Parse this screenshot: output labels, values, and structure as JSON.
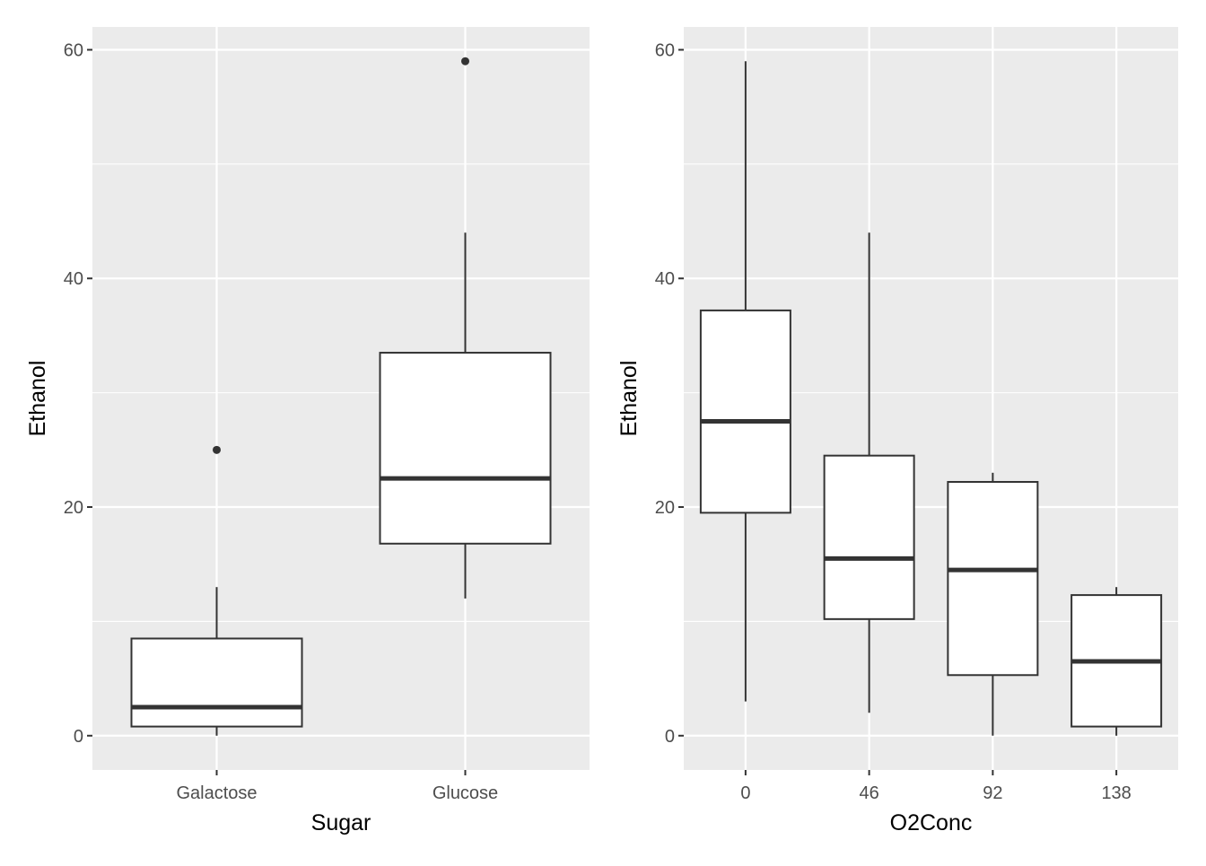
{
  "colors": {
    "panel_bg": "#ebebeb",
    "grid": "#ffffff",
    "box_fill": "#ffffff",
    "box_stroke": "#333333",
    "tick_text": "#4d4d4d",
    "axis_title": "#000000"
  },
  "chart_data": [
    {
      "type": "boxplot",
      "xlabel": "Sugar",
      "ylabel": "Ethanol",
      "ylim": [
        -3,
        62
      ],
      "yticks": [
        0,
        20,
        40,
        60
      ],
      "grid": true,
      "categories": [
        "Galactose",
        "Glucose"
      ],
      "boxes": [
        {
          "category": "Galactose",
          "whisker_low": 0,
          "q1": 0.8,
          "median": 2.5,
          "q3": 8.5,
          "whisker_high": 13,
          "outliers": [
            25
          ]
        },
        {
          "category": "Glucose",
          "whisker_low": 12,
          "q1": 16.8,
          "median": 22.5,
          "q3": 33.5,
          "whisker_high": 44,
          "outliers": [
            59
          ]
        }
      ]
    },
    {
      "type": "boxplot",
      "xlabel": "O2Conc",
      "ylabel": "Ethanol",
      "ylim": [
        -3,
        62
      ],
      "yticks": [
        0,
        20,
        40,
        60
      ],
      "grid": true,
      "categories": [
        "0",
        "46",
        "92",
        "138"
      ],
      "boxes": [
        {
          "category": "0",
          "whisker_low": 3,
          "q1": 19.5,
          "median": 27.5,
          "q3": 37.2,
          "whisker_high": 59,
          "outliers": []
        },
        {
          "category": "46",
          "whisker_low": 2,
          "q1": 10.2,
          "median": 15.5,
          "q3": 24.5,
          "whisker_high": 44,
          "outliers": []
        },
        {
          "category": "92",
          "whisker_low": 0,
          "q1": 5.3,
          "median": 14.5,
          "q3": 22.2,
          "whisker_high": 23,
          "outliers": []
        },
        {
          "category": "138",
          "whisker_low": 0,
          "q1": 0.8,
          "median": 6.5,
          "q3": 12.3,
          "whisker_high": 13,
          "outliers": []
        }
      ]
    }
  ]
}
